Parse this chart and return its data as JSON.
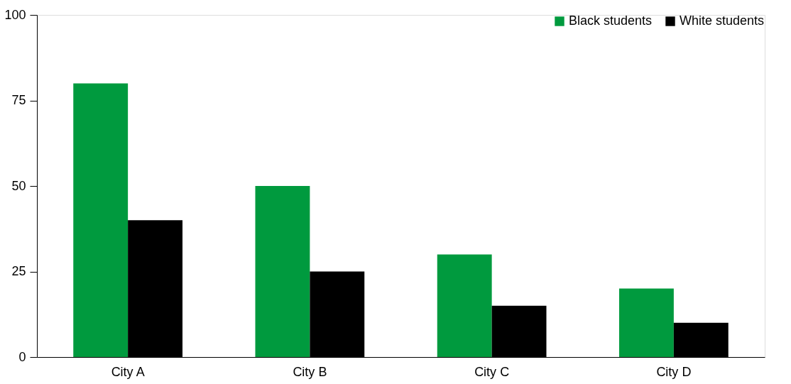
{
  "chart_data": {
    "type": "bar",
    "categories": [
      "City A",
      "City B",
      "City C",
      "City D"
    ],
    "series": [
      {
        "name": "Black students",
        "color": "#009a3e",
        "values": [
          80,
          50,
          30,
          20
        ]
      },
      {
        "name": "White students",
        "color": "#000000",
        "values": [
          40,
          25,
          15,
          10
        ]
      }
    ],
    "ylim": [
      0,
      100
    ],
    "yticks": [
      0,
      25,
      50,
      75,
      100
    ],
    "legend": "top right"
  }
}
